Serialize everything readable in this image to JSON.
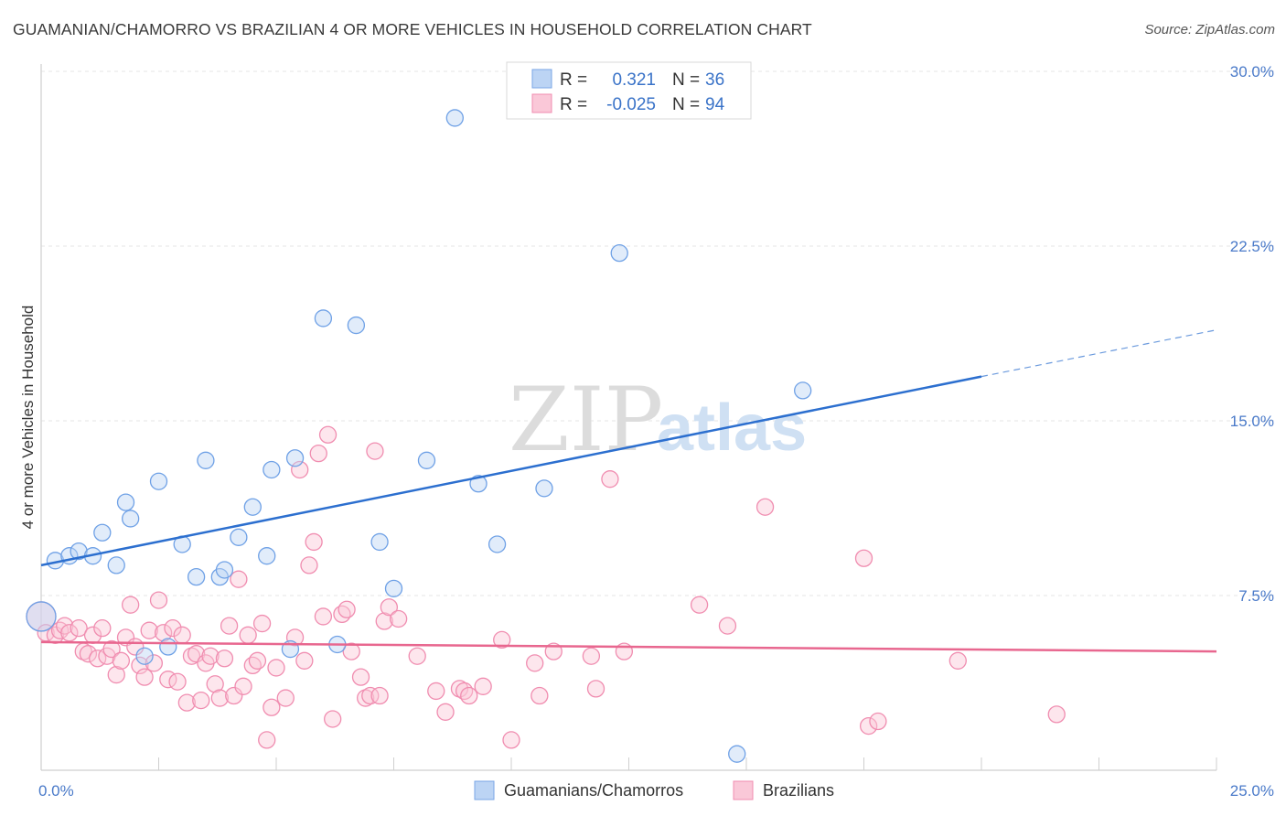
{
  "chart_data": {
    "type": "scatter",
    "title": "GUAMANIAN/CHAMORRO VS BRAZILIAN 4 OR MORE VEHICLES IN HOUSEHOLD CORRELATION CHART",
    "source": "Source: ZipAtlas.com",
    "xlabel": "",
    "ylabel": "4 or more Vehicles in Household",
    "xlim": [
      0,
      25
    ],
    "ylim": [
      0,
      30
    ],
    "x_tick_labels": [
      "0.0%",
      "25.0%"
    ],
    "y_ticks": [
      7.5,
      15.0,
      22.5,
      30.0
    ],
    "y_tick_labels": [
      "7.5%",
      "15.0%",
      "22.5%",
      "30.0%"
    ],
    "watermark": "ZIPatlas",
    "colors": {
      "guam": "#6fa1e6",
      "guam_line": "#2c6fcf",
      "braz": "#f08db0",
      "braz_line": "#e8678f"
    },
    "legend": {
      "r_label": "R =",
      "n_label": "N =",
      "rows": [
        {
          "r": "0.321",
          "n": "36"
        },
        {
          "r": "-0.025",
          "n": "94"
        }
      ]
    },
    "series": [
      {
        "name": "Guamanians/Chamorros",
        "trend": {
          "x0": 0,
          "y0": 8.8,
          "x1": 20,
          "y1": 16.9,
          "dash_to_x": 25,
          "dash_to_y": 18.9
        },
        "points": [
          [
            0.0,
            6.6
          ],
          [
            0.3,
            9.0
          ],
          [
            0.6,
            9.2
          ],
          [
            0.8,
            9.4
          ],
          [
            1.1,
            9.2
          ],
          [
            1.3,
            10.2
          ],
          [
            1.6,
            8.8
          ],
          [
            1.8,
            11.5
          ],
          [
            1.9,
            10.8
          ],
          [
            2.2,
            4.9
          ],
          [
            2.5,
            12.4
          ],
          [
            2.7,
            5.3
          ],
          [
            3.0,
            9.7
          ],
          [
            3.3,
            8.3
          ],
          [
            3.5,
            13.3
          ],
          [
            3.8,
            8.3
          ],
          [
            3.9,
            8.6
          ],
          [
            4.2,
            10.0
          ],
          [
            4.5,
            11.3
          ],
          [
            4.8,
            9.2
          ],
          [
            4.9,
            12.9
          ],
          [
            5.3,
            5.2
          ],
          [
            5.4,
            13.4
          ],
          [
            6.0,
            19.4
          ],
          [
            6.3,
            5.4
          ],
          [
            6.7,
            19.1
          ],
          [
            7.2,
            9.8
          ],
          [
            7.5,
            7.8
          ],
          [
            8.2,
            13.3
          ],
          [
            8.8,
            28.0
          ],
          [
            9.3,
            12.3
          ],
          [
            9.7,
            9.7
          ],
          [
            10.7,
            12.1
          ],
          [
            12.3,
            22.2
          ],
          [
            14.8,
            0.7
          ],
          [
            16.2,
            16.3
          ]
        ]
      },
      {
        "name": "Brazilians",
        "trend": {
          "x0": 0,
          "y0": 5.5,
          "x1": 25,
          "y1": 5.1
        },
        "points": [
          [
            0.0,
            6.6
          ],
          [
            0.1,
            5.9
          ],
          [
            0.3,
            5.8
          ],
          [
            0.4,
            6.0
          ],
          [
            0.5,
            6.2
          ],
          [
            0.6,
            5.9
          ],
          [
            0.8,
            6.1
          ],
          [
            0.9,
            5.1
          ],
          [
            1.0,
            5.0
          ],
          [
            1.1,
            5.8
          ],
          [
            1.2,
            4.8
          ],
          [
            1.3,
            6.1
          ],
          [
            1.4,
            4.9
          ],
          [
            1.5,
            5.2
          ],
          [
            1.6,
            4.1
          ],
          [
            1.7,
            4.7
          ],
          [
            1.8,
            5.7
          ],
          [
            1.9,
            7.1
          ],
          [
            2.0,
            5.3
          ],
          [
            2.1,
            4.5
          ],
          [
            2.2,
            4.0
          ],
          [
            2.3,
            6.0
          ],
          [
            2.4,
            4.6
          ],
          [
            2.5,
            7.3
          ],
          [
            2.6,
            5.9
          ],
          [
            2.7,
            3.9
          ],
          [
            2.8,
            6.1
          ],
          [
            2.9,
            3.8
          ],
          [
            3.0,
            5.8
          ],
          [
            3.1,
            2.9
          ],
          [
            3.2,
            4.9
          ],
          [
            3.3,
            5.0
          ],
          [
            3.4,
            3.0
          ],
          [
            3.5,
            4.6
          ],
          [
            3.6,
            4.9
          ],
          [
            3.7,
            3.7
          ],
          [
            3.8,
            3.1
          ],
          [
            3.9,
            4.8
          ],
          [
            4.0,
            6.2
          ],
          [
            4.1,
            3.2
          ],
          [
            4.2,
            8.2
          ],
          [
            4.3,
            3.6
          ],
          [
            4.4,
            5.8
          ],
          [
            4.5,
            4.5
          ],
          [
            4.6,
            4.7
          ],
          [
            4.7,
            6.3
          ],
          [
            4.8,
            1.3
          ],
          [
            4.9,
            2.7
          ],
          [
            5.0,
            4.4
          ],
          [
            5.2,
            3.1
          ],
          [
            5.4,
            5.7
          ],
          [
            5.5,
            12.9
          ],
          [
            5.6,
            4.7
          ],
          [
            5.7,
            8.8
          ],
          [
            5.8,
            9.8
          ],
          [
            5.9,
            13.6
          ],
          [
            6.0,
            6.6
          ],
          [
            6.1,
            14.4
          ],
          [
            6.2,
            2.2
          ],
          [
            6.4,
            6.7
          ],
          [
            6.5,
            6.9
          ],
          [
            6.6,
            5.1
          ],
          [
            6.8,
            4.0
          ],
          [
            6.9,
            3.1
          ],
          [
            7.0,
            3.2
          ],
          [
            7.1,
            13.7
          ],
          [
            7.2,
            3.2
          ],
          [
            7.3,
            6.4
          ],
          [
            7.4,
            7.0
          ],
          [
            7.6,
            6.5
          ],
          [
            8.0,
            4.9
          ],
          [
            8.4,
            3.4
          ],
          [
            8.6,
            2.5
          ],
          [
            8.9,
            3.5
          ],
          [
            9.0,
            3.4
          ],
          [
            9.1,
            3.2
          ],
          [
            9.4,
            3.6
          ],
          [
            9.8,
            5.6
          ],
          [
            10.0,
            1.3
          ],
          [
            10.5,
            4.6
          ],
          [
            10.6,
            3.2
          ],
          [
            10.9,
            5.1
          ],
          [
            11.7,
            4.9
          ],
          [
            11.8,
            3.5
          ],
          [
            12.1,
            12.5
          ],
          [
            12.4,
            5.1
          ],
          [
            14.0,
            7.1
          ],
          [
            14.6,
            6.2
          ],
          [
            15.4,
            11.3
          ],
          [
            17.5,
            9.1
          ],
          [
            17.6,
            1.9
          ],
          [
            17.8,
            2.1
          ],
          [
            19.5,
            4.7
          ],
          [
            21.6,
            2.4
          ]
        ]
      }
    ]
  }
}
